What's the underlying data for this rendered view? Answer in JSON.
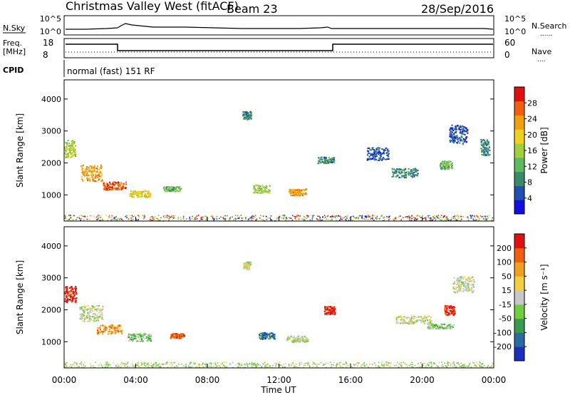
{
  "header": {
    "station": "Christmas Valley West (fitACF)",
    "beam": "Beam 23",
    "date": "28/Sep/2016"
  },
  "panels": {
    "nsky": {
      "label": "N.Sky",
      "ticks": [
        "10^5",
        "10^0"
      ],
      "right_ticks": [
        "10^5",
        "10^0"
      ],
      "right_label": "N.Search"
    },
    "freq": {
      "label_lines": [
        "Freq.",
        "[MHz]"
      ],
      "ticks": [
        "18",
        "8"
      ],
      "right_ticks": [
        "60",
        "0"
      ],
      "right_label": "Nave"
    },
    "cpid": {
      "label": "CPID",
      "text": "normal (fast) 151 RF"
    }
  },
  "chart_data": [
    {
      "type": "heatmap",
      "quantity": "Power",
      "ylabel": "Slant Range [km]",
      "yticks": [
        "4000",
        "3000",
        "2000",
        "1000"
      ],
      "colorbar": {
        "label": "Power [dB]",
        "ticks": [
          "28",
          "24",
          "20",
          "16",
          "12",
          "8",
          "4"
        ],
        "colors": [
          "#1010e0",
          "#2050b0",
          "#3a8a6a",
          "#60b860",
          "#a0d040",
          "#f0d020",
          "#f0a010",
          "#f06010",
          "#e01010"
        ]
      },
      "blobs": [
        {
          "t": 0.3,
          "r": 2450,
          "dt": 0.6,
          "dr": 550,
          "color_index": 4
        },
        {
          "t": 1.5,
          "r": 1700,
          "dt": 1.2,
          "dr": 500,
          "color_index": 6
        },
        {
          "t": 2.8,
          "r": 1300,
          "dt": 1.3,
          "dr": 250,
          "color_index": 7
        },
        {
          "t": 4.2,
          "r": 1050,
          "dt": 1.2,
          "dr": 200,
          "color_index": 5
        },
        {
          "t": 6.0,
          "r": 1200,
          "dt": 1.0,
          "dr": 150,
          "color_index": 3
        },
        {
          "t": 10.2,
          "r": 3500,
          "dt": 0.5,
          "dr": 250,
          "color_index": 2
        },
        {
          "t": 11.0,
          "r": 1200,
          "dt": 0.9,
          "dr": 250,
          "color_index": 4
        },
        {
          "t": 13.0,
          "r": 1100,
          "dt": 1.0,
          "dr": 200,
          "color_index": 6
        },
        {
          "t": 14.6,
          "r": 2100,
          "dt": 0.9,
          "dr": 200,
          "color_index": 2
        },
        {
          "t": 17.5,
          "r": 2300,
          "dt": 1.2,
          "dr": 400,
          "color_index": 1
        },
        {
          "t": 19.0,
          "r": 1700,
          "dt": 1.5,
          "dr": 300,
          "color_index": 2
        },
        {
          "t": 21.3,
          "r": 1950,
          "dt": 0.7,
          "dr": 250,
          "color_index": 3
        },
        {
          "t": 22.0,
          "r": 2900,
          "dt": 1.0,
          "dr": 600,
          "color_index": 1
        },
        {
          "t": 23.5,
          "r": 2500,
          "dt": 0.5,
          "dr": 500,
          "color_index": 2
        }
      ]
    },
    {
      "type": "heatmap",
      "quantity": "Velocity",
      "ylabel": "Slant Range [km]",
      "yticks": [
        "4000",
        "3000",
        "2000",
        "1000"
      ],
      "xticks": [
        "00:00",
        "04:00",
        "08:00",
        "12:00",
        "16:00",
        "20:00",
        "00:00"
      ],
      "xlabel": "Time UT",
      "colorbar": {
        "label": "Velocity [m s⁻¹]",
        "ticks": [
          "200",
          "100",
          "50",
          "15",
          "-15",
          "-50",
          "-100",
          "-200"
        ],
        "colors": [
          "#1a2ec0",
          "#2a6aa0",
          "#3a9a50",
          "#70cc40",
          "#c8c8c8",
          "#f0d040",
          "#f0a020",
          "#f06010",
          "#e01010"
        ]
      },
      "blobs": [
        {
          "t": 0.3,
          "r": 2500,
          "dt": 0.7,
          "dr": 500,
          "color_index": 8
        },
        {
          "t": 1.5,
          "r": 1900,
          "dt": 1.3,
          "dr": 500,
          "color_index": 4
        },
        {
          "t": 2.5,
          "r": 1400,
          "dt": 1.4,
          "dr": 300,
          "color_index": 6
        },
        {
          "t": 4.2,
          "r": 1150,
          "dt": 1.3,
          "dr": 250,
          "color_index": 3
        },
        {
          "t": 6.3,
          "r": 1200,
          "dt": 0.8,
          "dr": 150,
          "color_index": 7
        },
        {
          "t": 10.2,
          "r": 3400,
          "dt": 0.4,
          "dr": 250,
          "color_index": 4
        },
        {
          "t": 11.3,
          "r": 1200,
          "dt": 0.9,
          "dr": 200,
          "color_index": 1
        },
        {
          "t": 13.0,
          "r": 1100,
          "dt": 1.2,
          "dr": 200,
          "color_index": 4
        },
        {
          "t": 14.8,
          "r": 2000,
          "dt": 0.6,
          "dr": 250,
          "color_index": 8
        },
        {
          "t": 19.5,
          "r": 1700,
          "dt": 2.0,
          "dr": 250,
          "color_index": 4
        },
        {
          "t": 21.5,
          "r": 2000,
          "dt": 0.6,
          "dr": 300,
          "color_index": 8
        },
        {
          "t": 22.3,
          "r": 2800,
          "dt": 1.2,
          "dr": 500,
          "color_index": 4
        },
        {
          "t": 21.0,
          "r": 1500,
          "dt": 1.5,
          "dr": 150,
          "color_index": 3
        }
      ]
    }
  ]
}
